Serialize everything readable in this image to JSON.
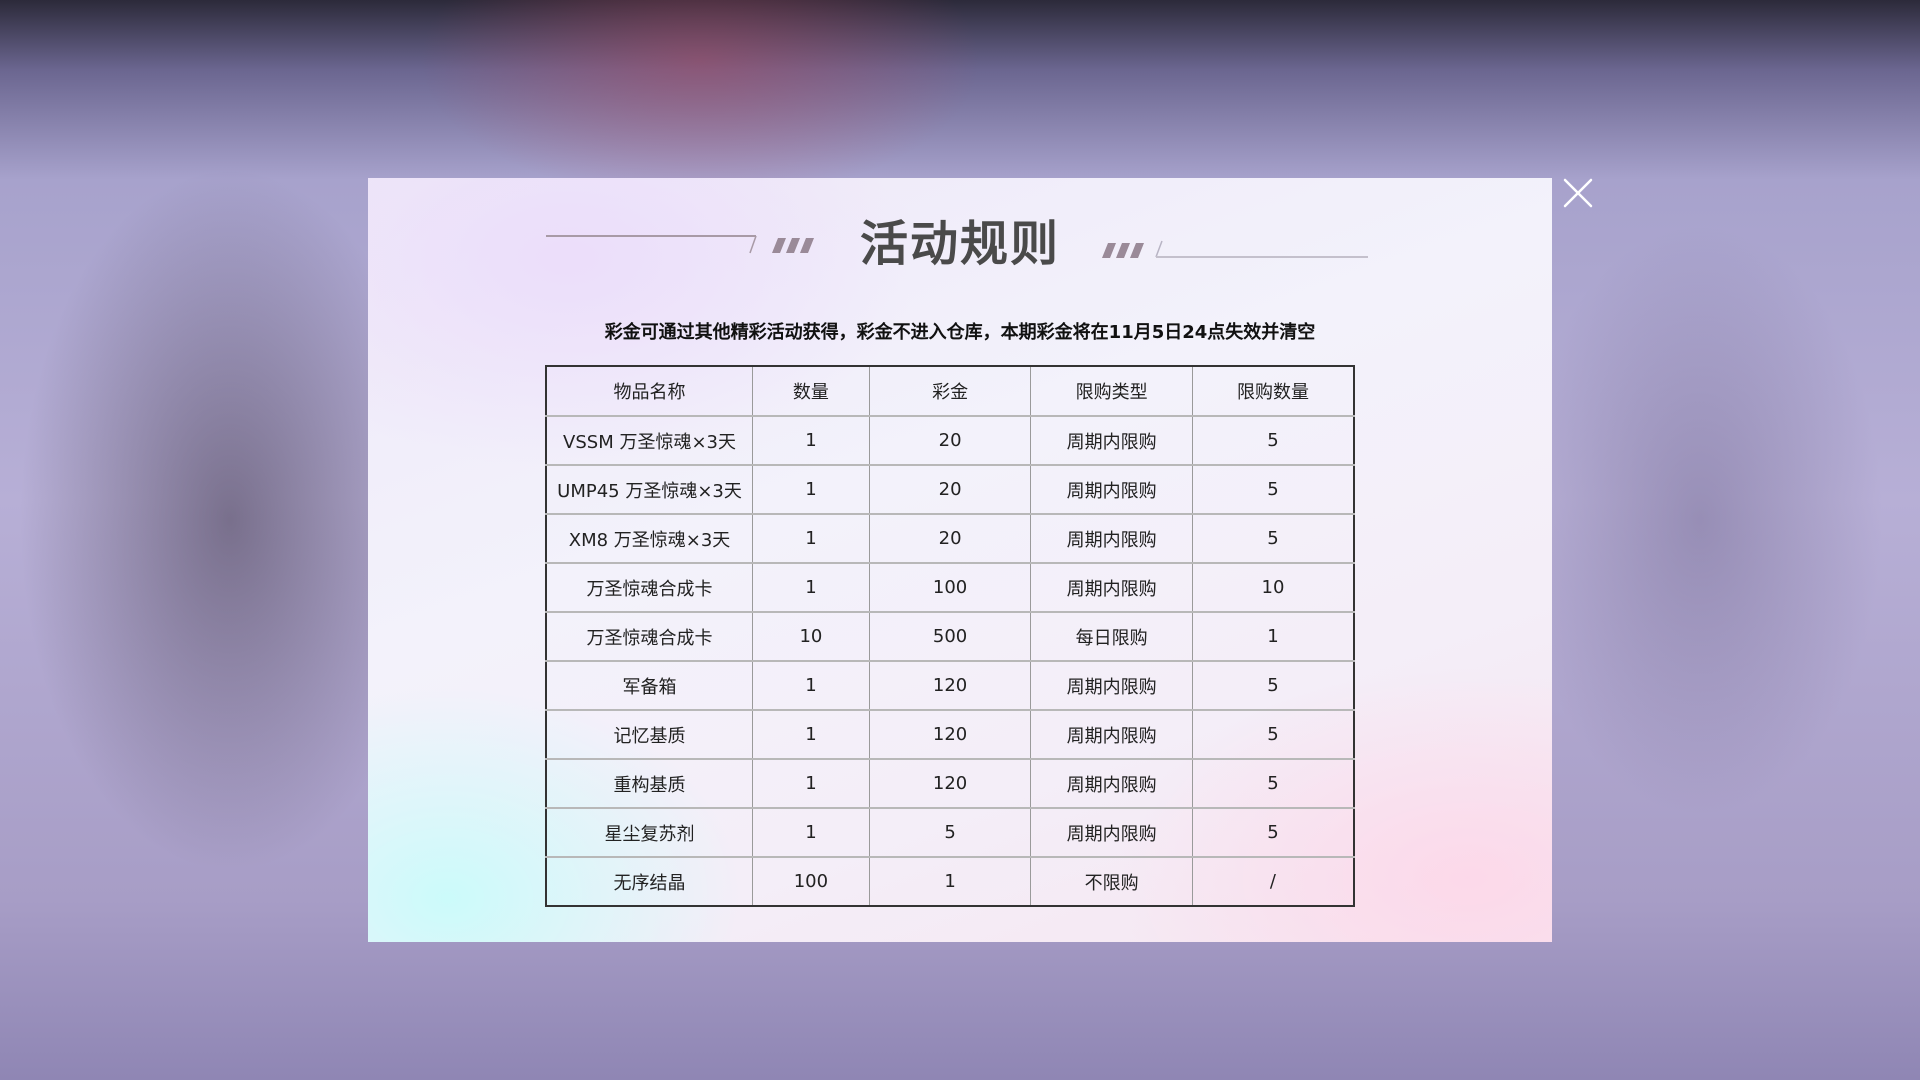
{
  "dialog": {
    "title": "活动规则",
    "subtitle": "彩金可通过其他精彩活动获得，彩金不进入仓库，本期彩金将在11月5日24点失效并清空",
    "close_icon": "close-icon"
  },
  "table": {
    "headers": [
      "物品名称",
      "数量",
      "彩金",
      "限购类型",
      "限购数量"
    ],
    "rows": [
      [
        "VSSM 万圣惊魂×3天",
        "1",
        "20",
        "周期内限购",
        "5"
      ],
      [
        "UMP45 万圣惊魂×3天",
        "1",
        "20",
        "周期内限购",
        "5"
      ],
      [
        "XM8 万圣惊魂×3天",
        "1",
        "20",
        "周期内限购",
        "5"
      ],
      [
        "万圣惊魂合成卡",
        "1",
        "100",
        "周期内限购",
        "10"
      ],
      [
        "万圣惊魂合成卡",
        "10",
        "500",
        "每日限购",
        "1"
      ],
      [
        "军备箱",
        "1",
        "120",
        "周期内限购",
        "5"
      ],
      [
        "记忆基质",
        "1",
        "120",
        "周期内限购",
        "5"
      ],
      [
        "重构基质",
        "1",
        "120",
        "周期内限购",
        "5"
      ],
      [
        "星尘复苏剂",
        "1",
        "5",
        "周期内限购",
        "5"
      ],
      [
        "无序结晶",
        "100",
        "1",
        "不限购",
        "/"
      ]
    ]
  }
}
